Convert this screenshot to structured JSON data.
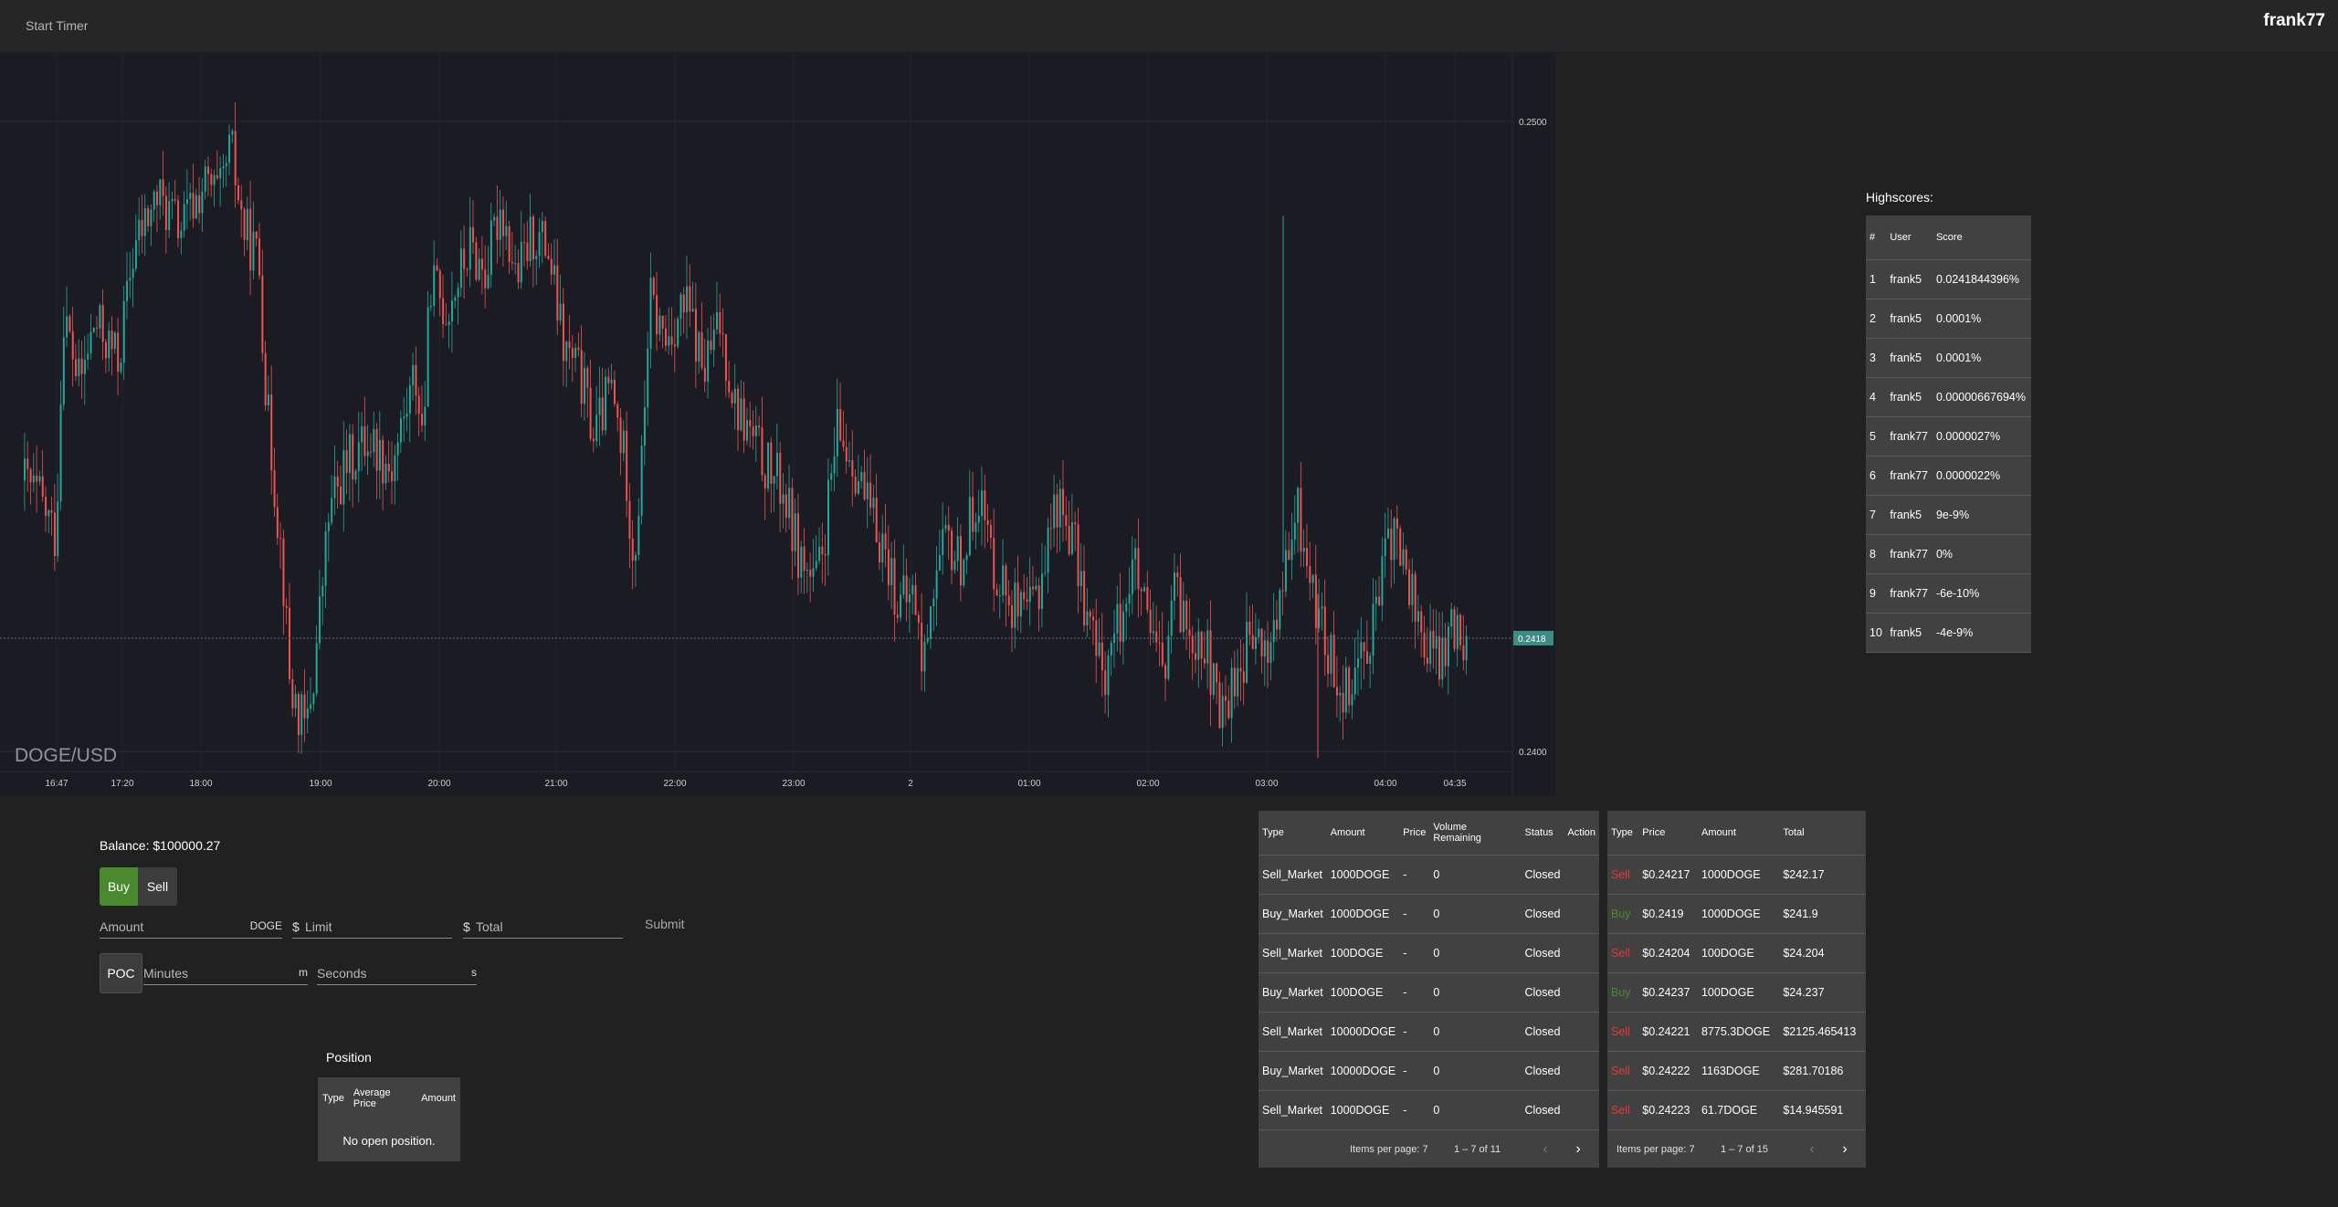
{
  "header": {
    "start_timer": "Start Timer",
    "username": "frank77"
  },
  "chart": {
    "symbol": "DOGE/USD",
    "price_axis": [
      "0.2500",
      "0.2400"
    ],
    "current_price": "0.2418",
    "time_axis": [
      "16:47",
      "17:20",
      "18:00",
      "19:00",
      "20:00",
      "21:00",
      "22:00",
      "23:00",
      "2",
      "01:00",
      "02:00",
      "03:00",
      "04:00",
      "04:35"
    ],
    "up_color": "#26a69a",
    "down_color": "#ef5350"
  },
  "chart_data": {
    "type": "candlestick",
    "title": "DOGE/USD",
    "ylim": [
      0.2398,
      0.2511
    ],
    "x_ticks": [
      "16:47",
      "17:20",
      "18:00",
      "19:00",
      "20:00",
      "21:00",
      "22:00",
      "23:00",
      "2",
      "01:00",
      "02:00",
      "03:00",
      "04:00",
      "04:35"
    ],
    "y_ticks": [
      0.25,
      0.24
    ],
    "last_price": 0.2418,
    "close_path": [
      [
        0,
        0.2443
      ],
      [
        0.01,
        0.244
      ],
      [
        0.02,
        0.2434
      ],
      [
        0.025,
        0.247
      ],
      [
        0.035,
        0.2458
      ],
      [
        0.045,
        0.2468
      ],
      [
        0.06,
        0.2462
      ],
      [
        0.07,
        0.248
      ],
      [
        0.085,
        0.2488
      ],
      [
        0.1,
        0.2483
      ],
      [
        0.115,
        0.249
      ],
      [
        0.125,
        0.2488
      ],
      [
        0.132,
        0.2496
      ],
      [
        0.14,
        0.2483
      ],
      [
        0.15,
        0.2478
      ],
      [
        0.155,
        0.2455
      ],
      [
        0.165,
        0.243
      ],
      [
        0.17,
        0.241
      ],
      [
        0.18,
        0.2403
      ],
      [
        0.185,
        0.2412
      ],
      [
        0.195,
        0.2438
      ],
      [
        0.205,
        0.2445
      ],
      [
        0.22,
        0.245
      ],
      [
        0.235,
        0.2445
      ],
      [
        0.245,
        0.2455
      ],
      [
        0.25,
        0.246
      ],
      [
        0.255,
        0.245
      ],
      [
        0.26,
        0.2475
      ],
      [
        0.27,
        0.247
      ],
      [
        0.285,
        0.248
      ],
      [
        0.295,
        0.2476
      ],
      [
        0.305,
        0.2487
      ],
      [
        0.315,
        0.2475
      ],
      [
        0.325,
        0.2482
      ],
      [
        0.335,
        0.248
      ],
      [
        0.345,
        0.2464
      ],
      [
        0.355,
        0.246
      ],
      [
        0.365,
        0.245
      ],
      [
        0.375,
        0.2458
      ],
      [
        0.385,
        0.2445
      ],
      [
        0.39,
        0.243
      ],
      [
        0.395,
        0.2445
      ],
      [
        0.4,
        0.2472
      ],
      [
        0.41,
        0.2465
      ],
      [
        0.42,
        0.247
      ],
      [
        0.425,
        0.247
      ],
      [
        0.435,
        0.246
      ],
      [
        0.445,
        0.2468
      ],
      [
        0.455,
        0.2455
      ],
      [
        0.465,
        0.245
      ],
      [
        0.475,
        0.2445
      ],
      [
        0.485,
        0.2442
      ],
      [
        0.495,
        0.2432
      ],
      [
        0.505,
        0.2426
      ],
      [
        0.51,
        0.243
      ],
      [
        0.52,
        0.245
      ],
      [
        0.53,
        0.2447
      ],
      [
        0.54,
        0.2438
      ],
      [
        0.55,
        0.2433
      ],
      [
        0.56,
        0.2423
      ],
      [
        0.57,
        0.2425
      ],
      [
        0.575,
        0.2412
      ],
      [
        0.58,
        0.2425
      ],
      [
        0.59,
        0.2433
      ],
      [
        0.6,
        0.243
      ],
      [
        0.61,
        0.2442
      ],
      [
        0.62,
        0.243
      ],
      [
        0.63,
        0.2425
      ],
      [
        0.64,
        0.242
      ],
      [
        0.65,
        0.2427
      ],
      [
        0.66,
        0.244
      ],
      [
        0.67,
        0.2435
      ],
      [
        0.68,
        0.2422
      ],
      [
        0.69,
        0.2412
      ],
      [
        0.7,
        0.242
      ],
      [
        0.71,
        0.243
      ],
      [
        0.72,
        0.2418
      ],
      [
        0.73,
        0.2412
      ],
      [
        0.735,
        0.2425
      ],
      [
        0.745,
        0.242
      ],
      [
        0.755,
        0.2418
      ],
      [
        0.765,
        0.2405
      ],
      [
        0.775,
        0.2412
      ],
      [
        0.785,
        0.2418
      ],
      [
        0.795,
        0.2415
      ],
      [
        0.805,
        0.2425
      ],
      [
        0.815,
        0.2438
      ],
      [
        0.825,
        0.2425
      ],
      [
        0.835,
        0.2415
      ],
      [
        0.845,
        0.241
      ],
      [
        0.855,
        0.2415
      ],
      [
        0.865,
        0.2422
      ],
      [
        0.875,
        0.2435
      ],
      [
        0.885,
        0.2428
      ],
      [
        0.895,
        0.2418
      ],
      [
        0.905,
        0.2414
      ],
      [
        0.915,
        0.242
      ],
      [
        0.925,
        0.2418
      ]
    ]
  },
  "trade": {
    "balance": "Balance: $100000.27",
    "buy": "Buy",
    "sell": "Sell",
    "amount_placeholder": "Amount",
    "amount_suffix": "DOGE",
    "limit_prefix": "$",
    "limit_placeholder": "Limit",
    "total_prefix": "$",
    "total_placeholder": "Total",
    "submit": "Submit",
    "poc": "POC",
    "minutes_placeholder": "Minutes",
    "minutes_suffix": "m",
    "seconds_placeholder": "Seconds",
    "seconds_suffix": "s"
  },
  "position": {
    "title": "Position",
    "headers": [
      "Type",
      "Average Price",
      "Amount"
    ],
    "empty": "No open position."
  },
  "orders": {
    "headers": [
      "Type",
      "Amount",
      "Price",
      "Volume Remaining",
      "Status",
      "Action"
    ],
    "rows": [
      [
        "Sell_Market",
        "1000DOGE",
        "-",
        "0",
        "Closed",
        ""
      ],
      [
        "Buy_Market",
        "1000DOGE",
        "-",
        "0",
        "Closed",
        ""
      ],
      [
        "Sell_Market",
        "100DOGE",
        "-",
        "0",
        "Closed",
        ""
      ],
      [
        "Buy_Market",
        "100DOGE",
        "-",
        "0",
        "Closed",
        ""
      ],
      [
        "Sell_Market",
        "10000DOGE",
        "-",
        "0",
        "Closed",
        ""
      ],
      [
        "Buy_Market",
        "10000DOGE",
        "-",
        "0",
        "Closed",
        ""
      ],
      [
        "Sell_Market",
        "1000DOGE",
        "-",
        "0",
        "Closed",
        ""
      ]
    ],
    "items_per_page": "Items per page: 7",
    "range": "1 – 7 of 11"
  },
  "fills": {
    "headers": [
      "Type",
      "Price",
      "Amount",
      "Total"
    ],
    "rows": [
      [
        "Sell",
        "$0.24217",
        "1000DOGE",
        "$242.17"
      ],
      [
        "Buy",
        "$0.2419",
        "1000DOGE",
        "$241.9"
      ],
      [
        "Sell",
        "$0.24204",
        "100DOGE",
        "$24.204"
      ],
      [
        "Buy",
        "$0.24237",
        "100DOGE",
        "$24.237"
      ],
      [
        "Sell",
        "$0.24221",
        "8775.3DOGE",
        "$2125.465413"
      ],
      [
        "Sell",
        "$0.24222",
        "1163DOGE",
        "$281.70186"
      ],
      [
        "Sell",
        "$0.24223",
        "61.7DOGE",
        "$14.945591"
      ]
    ],
    "items_per_page": "Items per page: 7",
    "range": "1 – 7 of 15"
  },
  "highscores": {
    "title": "Highscores:",
    "headers": [
      "#",
      "User",
      "Score"
    ],
    "rows": [
      [
        "1",
        "frank5",
        "0.0241844396%"
      ],
      [
        "2",
        "frank5",
        "0.0001%"
      ],
      [
        "3",
        "frank5",
        "0.0001%"
      ],
      [
        "4",
        "frank5",
        "0.00000667694%"
      ],
      [
        "5",
        "frank77",
        "0.0000027%"
      ],
      [
        "6",
        "frank77",
        "0.0000022%"
      ],
      [
        "7",
        "frank5",
        "9e-9%"
      ],
      [
        "8",
        "frank77",
        "0%"
      ],
      [
        "9",
        "frank77",
        "-6e-10%"
      ],
      [
        "10",
        "frank5",
        "-4e-9%"
      ]
    ]
  }
}
